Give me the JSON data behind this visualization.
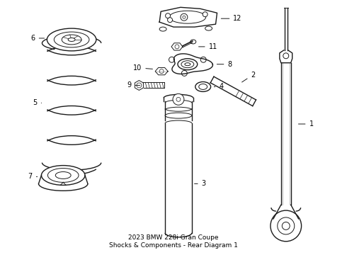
{
  "title": "2023 BMW 228i Gran Coupe\nShocks & Components - Rear Diagram 1",
  "background_color": "#ffffff",
  "line_color": "#1a1a1a",
  "label_color": "#000000",
  "fig_width": 4.9,
  "fig_height": 3.6,
  "dpi": 100
}
